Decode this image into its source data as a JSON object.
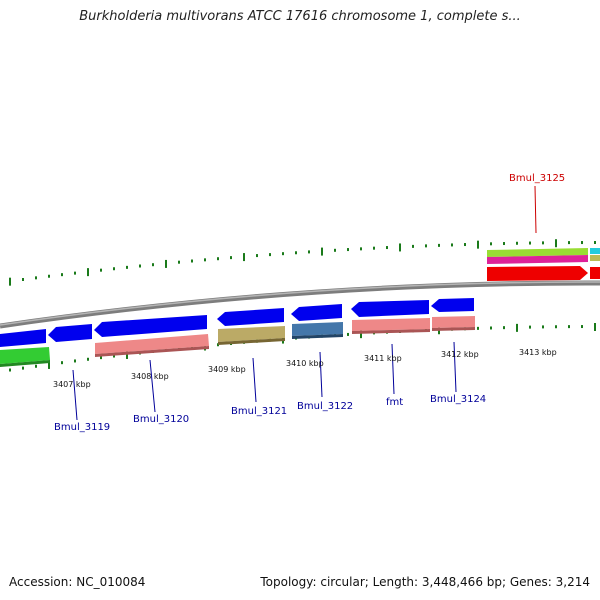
{
  "title": "Burkholderia multivorans ATCC 17616 chromosome 1, complete s...",
  "accession": "Accession: NC_010084",
  "summary": "Topology: circular; Length: 3,448,466 bp; Genes: 3,214",
  "colors": {
    "backbone": "#8a8a8a",
    "ticks": "#1a7a1a",
    "cds": "#0000ee",
    "gene_label": "#000099",
    "highlight_label": "#cc0000"
  },
  "genes": [
    {
      "name": "Bmul_3119",
      "highlight": false
    },
    {
      "name": "Bmul_3120",
      "highlight": false
    },
    {
      "name": "Bmul_3121",
      "highlight": false
    },
    {
      "name": "Bmul_3122",
      "highlight": false
    },
    {
      "name": "fmt",
      "highlight": false
    },
    {
      "name": "Bmul_3124",
      "highlight": false
    },
    {
      "name": "Bmul_3125",
      "highlight": true
    }
  ],
  "position_labels": [
    "3407 kbp",
    "3408 kbp",
    "3409 kbp",
    "3410 kbp",
    "3411 kbp",
    "3412 kbp",
    "3413 kbp"
  ]
}
